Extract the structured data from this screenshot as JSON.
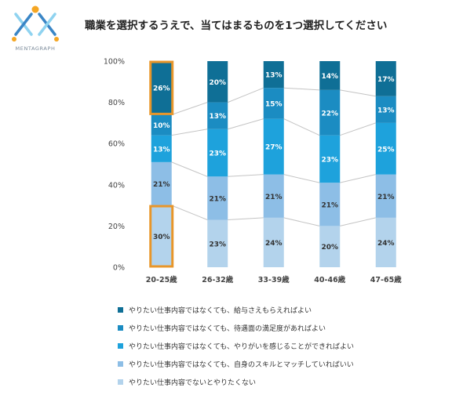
{
  "logo": {
    "text": "MENTAGRAPH",
    "colors": {
      "light_blue": "#8fd3f0",
      "blue": "#3a86c6",
      "orange": "#f5a623"
    }
  },
  "chart_data": {
    "type": "bar",
    "stacked": true,
    "title": "職業を選択するうえで、当てはまるものを1つ選択してください",
    "xlabel": "",
    "ylabel": "",
    "categories": [
      "20-25歳",
      "26-32歳",
      "33-39歳",
      "40-46歳",
      "47-65歳"
    ],
    "ylim": [
      0,
      100
    ],
    "yticks": [
      "0%",
      "20%",
      "40%",
      "60%",
      "80%",
      "100%"
    ],
    "grid": false,
    "legend_position": "bottom",
    "connector_lines": true,
    "highlight": {
      "category": "20-25歳",
      "series": [
        0,
        4
      ],
      "color": "#e8962a"
    },
    "series": [
      {
        "name": "やりたい仕事内容でないとやりたくない",
        "color": "#b3d3ec",
        "values": [
          30,
          23,
          24,
          20,
          24
        ],
        "labels": [
          "30%",
          "23%",
          "24%",
          "20%",
          "24%"
        ]
      },
      {
        "name": "やりたい仕事内容ではなくても、自身のスキルとマッチしていればいい",
        "color": "#8dbee6",
        "values": [
          21,
          21,
          21,
          21,
          21
        ],
        "labels": [
          "21%",
          "21%",
          "21%",
          "21%",
          "21%"
        ]
      },
      {
        "name": "やりたい仕事内容ではなくても、やりがいを感じることができればよい",
        "color": "#1ea2dc",
        "values": [
          13,
          23,
          27,
          23,
          25
        ],
        "labels": [
          "13%",
          "23%",
          "27%",
          "23%",
          "25%"
        ]
      },
      {
        "name": "やりたい仕事内容ではなくても、待遇面の満足度があればよい",
        "color": "#1b8cc2",
        "values": [
          10,
          13,
          15,
          22,
          13
        ],
        "labels": [
          "10%",
          "13%",
          "15%",
          "22%",
          "13%"
        ]
      },
      {
        "name": "やりたい仕事内容ではなくても、給与さえもらえればよい",
        "color": "#0f6f96",
        "values": [
          26,
          20,
          13,
          14,
          17
        ],
        "labels": [
          "26%",
          "20%",
          "13%",
          "14%",
          "17%"
        ]
      }
    ]
  }
}
